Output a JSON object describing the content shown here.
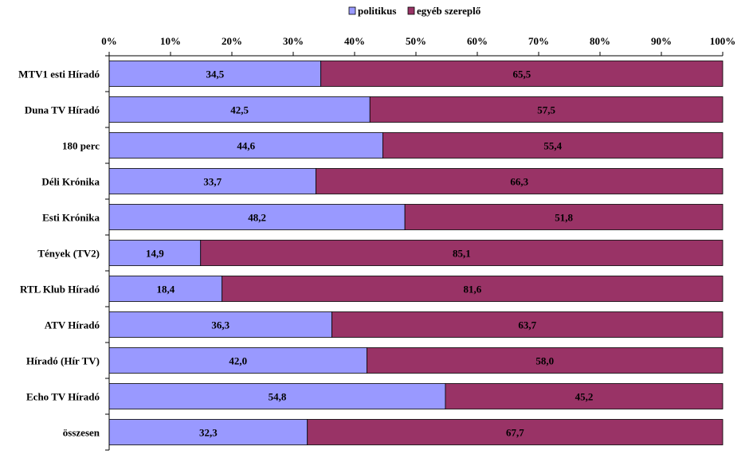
{
  "chart_data": {
    "type": "bar",
    "orientation": "horizontal",
    "stacked": "percent",
    "legend_position": "top-center",
    "xlim": [
      0,
      100
    ],
    "xticks": [
      "0%",
      "10%",
      "20%",
      "30%",
      "40%",
      "50%",
      "60%",
      "70%",
      "80%",
      "90%",
      "100%"
    ],
    "categories": [
      "MTV1 esti Híradó",
      "Duna TV Híradó",
      "180 perc",
      "Déli Krónika",
      "Esti Krónika",
      "Tények (TV2)",
      "RTL Klub Híradó",
      "ATV Híradó",
      "Híradó (Hír TV)",
      "Echo TV Híradó",
      "összesen"
    ],
    "series": [
      {
        "name": "politikus",
        "color": "#9999FF",
        "values": [
          34.5,
          42.5,
          44.6,
          33.7,
          48.2,
          14.9,
          18.4,
          36.3,
          42.0,
          54.8,
          32.3
        ],
        "labels": [
          "34,5",
          "42,5",
          "44,6",
          "33,7",
          "48,2",
          "14,9",
          "18,4",
          "36,3",
          "42,0",
          "54,8",
          "32,3"
        ]
      },
      {
        "name": "egyéb szereplő",
        "color": "#993366",
        "values": [
          65.5,
          57.5,
          55.4,
          66.3,
          51.8,
          85.1,
          81.6,
          63.7,
          58.0,
          45.2,
          67.7
        ],
        "labels": [
          "65,5",
          "57,5",
          "55,4",
          "66,3",
          "51,8",
          "85,1",
          "81,6",
          "63,7",
          "58,0",
          "45,2",
          "67,7"
        ]
      }
    ]
  }
}
